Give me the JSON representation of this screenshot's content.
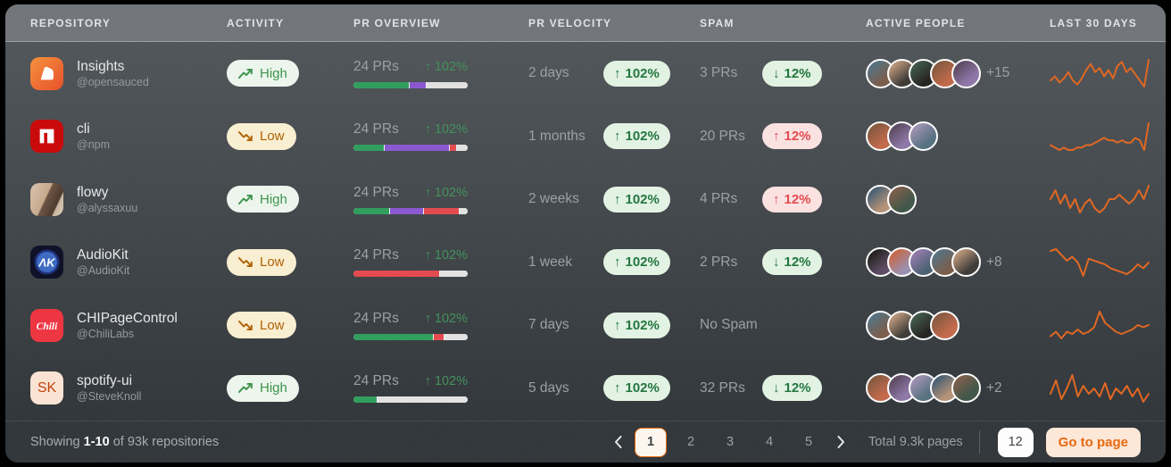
{
  "table": {
    "columns": [
      "REPOSITORY",
      "ACTIVITY",
      "PR OVERVIEW",
      "PR VELOCITY",
      "SPAM",
      "ACTIVE PEOPLE",
      "LAST 30 DAYS"
    ]
  },
  "colors": {
    "accent_orange": "#ea670c",
    "spark_line": "#e2661f",
    "bar_green": "#2e9e5b",
    "bar_purple": "#8957d1",
    "bar_red": "#e5484d",
    "bar_track": "#e3e3e3",
    "badge_high_bg": "#eef7ee",
    "badge_high_text": "#3a9349",
    "badge_low_bg": "#faf0d2",
    "badge_low_text": "#b06000",
    "pill_green_bg": "#e3f4e5",
    "pill_green_text": "#20753c",
    "pill_red_bg": "#fce3e2",
    "pill_red_text": "#e5484d",
    "avatar_palette": [
      "#7a5c49",
      "#3d3a36",
      "#23211f",
      "#c4684a",
      "#8e77a8",
      "#55707f",
      "#b59276",
      "#3e5547",
      "#86593e",
      "#5d4a63",
      "#9a8fb0",
      "#4a6072"
    ]
  },
  "rows": [
    {
      "name": "Insights",
      "org": "@opensauced",
      "logo": "opensauced",
      "activity": {
        "label": "High",
        "level": "high"
      },
      "overview": {
        "count": "24 PRs",
        "change": "↑ 102%",
        "bar": [
          {
            "color": "green",
            "pct": 49
          },
          {
            "color": "purple",
            "pct": 15
          },
          {
            "color": "track",
            "pct": 36
          }
        ]
      },
      "velocity": {
        "label": "2 days",
        "change": "102%"
      },
      "spam": {
        "label": "3 PRs",
        "change": "12%",
        "dir": "down"
      },
      "people": {
        "count": 5,
        "extra": "+15"
      },
      "spark": [
        8,
        10,
        7,
        9,
        12,
        8,
        6,
        9,
        13,
        16,
        12,
        14,
        10,
        13,
        9,
        15,
        17,
        12,
        14,
        11,
        8,
        5,
        18
      ]
    },
    {
      "name": "cli",
      "org": "@npm",
      "logo": "npm",
      "activity": {
        "label": "Low",
        "level": "low"
      },
      "overview": {
        "count": "24 PRs",
        "change": "↑ 102%",
        "bar": [
          {
            "color": "green",
            "pct": 27
          },
          {
            "color": "purple",
            "pct": 57
          },
          {
            "color": "red",
            "pct": 7
          },
          {
            "color": "track",
            "pct": 9
          }
        ]
      },
      "velocity": {
        "label": "1 months",
        "change": "102%"
      },
      "spam": {
        "label": "20 PRs",
        "change": "12%",
        "dir": "up"
      },
      "people": {
        "count": 3,
        "extra": ""
      },
      "spark": [
        9,
        8,
        7,
        8,
        7,
        7,
        8,
        8,
        9,
        9,
        10,
        11,
        12,
        11,
        11,
        10,
        11,
        10,
        10,
        12,
        11,
        7,
        18
      ]
    },
    {
      "name": "flowy",
      "org": "@alyssaxuu",
      "logo": "flowy",
      "activity": {
        "label": "High",
        "level": "high"
      },
      "overview": {
        "count": "24 PRs",
        "change": "↑ 102%",
        "bar": [
          {
            "color": "green",
            "pct": 32
          },
          {
            "color": "purple",
            "pct": 30
          },
          {
            "color": "red",
            "pct": 31
          },
          {
            "color": "track",
            "pct": 7
          }
        ]
      },
      "velocity": {
        "label": "2 weeks",
        "change": "102%"
      },
      "spam": {
        "label": "4 PRs",
        "change": "12%",
        "dir": "up"
      },
      "people": {
        "count": 2,
        "extra": ""
      },
      "spark": [
        12,
        14,
        11,
        13,
        10,
        12,
        9,
        11,
        12,
        10,
        9,
        10,
        12,
        12,
        13,
        12,
        11,
        12,
        14,
        12,
        15
      ]
    },
    {
      "name": "AudioKit",
      "org": "@AudioKit",
      "logo": "audiokit",
      "activity": {
        "label": "Low",
        "level": "low"
      },
      "overview": {
        "count": "24 PRs",
        "change": "↑ 102%",
        "bar": [
          {
            "color": "red",
            "pct": 76
          },
          {
            "color": "track",
            "pct": 24
          }
        ]
      },
      "velocity": {
        "label": "1 week",
        "change": "102%"
      },
      "spam": {
        "label": "2 PRs",
        "change": "12%",
        "dir": "down"
      },
      "people": {
        "count": 5,
        "extra": "+8"
      },
      "spark": [
        17,
        18,
        15,
        12,
        14,
        11,
        4,
        13,
        12,
        11,
        10,
        8,
        7,
        6,
        5,
        7,
        10,
        8,
        11
      ]
    },
    {
      "name": "CHIPageControl",
      "org": "@ChiliLabs",
      "logo": "chili",
      "activity": {
        "label": "Low",
        "level": "low"
      },
      "overview": {
        "count": "24 PRs",
        "change": "↑ 102%",
        "bar": [
          {
            "color": "green",
            "pct": 70
          },
          {
            "color": "red",
            "pct": 10
          },
          {
            "color": "track",
            "pct": 20
          }
        ]
      },
      "velocity": {
        "label": "7 days",
        "change": "102%"
      },
      "spam": {
        "label": "No Spam",
        "change": null,
        "dir": null
      },
      "people": {
        "count": 4,
        "extra": ""
      },
      "spark": [
        7,
        9,
        6,
        9,
        8,
        10,
        8,
        9,
        11,
        18,
        13,
        11,
        9,
        8,
        9,
        10,
        12,
        11,
        12
      ]
    },
    {
      "name": "spotify-ui",
      "org": "@SteveKnoll",
      "logo": "sk",
      "activity": {
        "label": "High",
        "level": "high"
      },
      "overview": {
        "count": "24 PRs",
        "change": "↑ 102%",
        "bar": [
          {
            "color": "green",
            "pct": 21
          },
          {
            "color": "track",
            "pct": 79
          }
        ]
      },
      "velocity": {
        "label": "5 days",
        "change": "102%"
      },
      "spam": {
        "label": "32 PRs",
        "change": "12%",
        "dir": "down"
      },
      "people": {
        "count": 5,
        "extra": "+2"
      },
      "spark": [
        10,
        15,
        8,
        12,
        17,
        9,
        13,
        10,
        12,
        9,
        14,
        8,
        12,
        10,
        13,
        9,
        12,
        7,
        10
      ]
    }
  ],
  "footer": {
    "showing_prefix": "Showing",
    "showing_range": "1-10",
    "showing_suffix": "of 93k repositories",
    "pages": [
      "1",
      "2",
      "3",
      "4",
      "5"
    ],
    "active_page": "1",
    "total_label": "Total 9.3k pages",
    "page_input_value": "12",
    "go_button_label": "Go to page"
  },
  "chart_data": {
    "type": "line",
    "note": "orange 30-day activity sparklines per repository row",
    "series_key": "rows[].spark",
    "xlabel": "last 30 days",
    "ylabel": "activity"
  }
}
